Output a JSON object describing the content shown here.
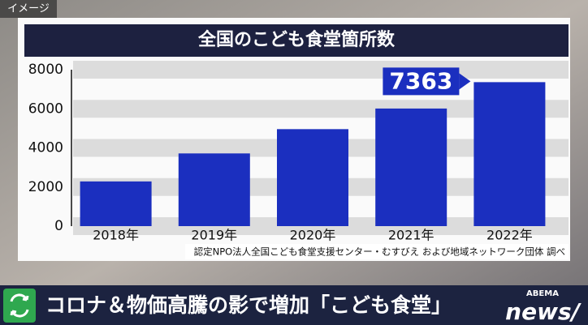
{
  "image_label": "イメージ",
  "chart_data": {
    "type": "bar",
    "title": "全国のこども食堂箇所数",
    "categories": [
      "2018年",
      "2019年",
      "2020年",
      "2021年",
      "2022年"
    ],
    "values": [
      2286,
      3718,
      4960,
      6014,
      7363
    ],
    "color": "#1b2fbf",
    "ylim": [
      0,
      8000
    ],
    "yticks": [
      0,
      2000,
      4000,
      6000,
      8000
    ],
    "grid": true
  },
  "source": "認定NPO法人全国こども食堂支援センター・むすびえ および地域ネットワーク団体 調べ",
  "headline": "コロナ＆物価高騰の影で増加「こども食堂」",
  "logo": {
    "brand": "ABEMA",
    "name": "news/"
  }
}
